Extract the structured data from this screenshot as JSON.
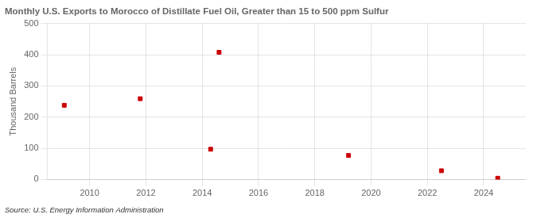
{
  "chart_data": {
    "type": "scatter",
    "title": "Monthly U.S. Exports to Morocco of Distillate Fuel Oil, Greater than 15 to 500 ppm Sulfur",
    "ylabel": "Thousand Barrels",
    "source": "Source: U.S. Energy Information Administration",
    "x": [
      2009.1,
      2011.8,
      2014.3,
      2014.6,
      2019.2,
      2022.5,
      2024.5
    ],
    "values": [
      238,
      259,
      97,
      408,
      77,
      28,
      4
    ],
    "color": "#cc0000",
    "marker": "square",
    "xlim": [
      2008.5,
      2025.5
    ],
    "xticks": [
      2010,
      2012,
      2014,
      2016,
      2018,
      2020,
      2022,
      2024
    ],
    "ylim": [
      0,
      500
    ],
    "yticks": [
      0,
      100,
      200,
      300,
      400,
      500
    ],
    "grid": true
  }
}
